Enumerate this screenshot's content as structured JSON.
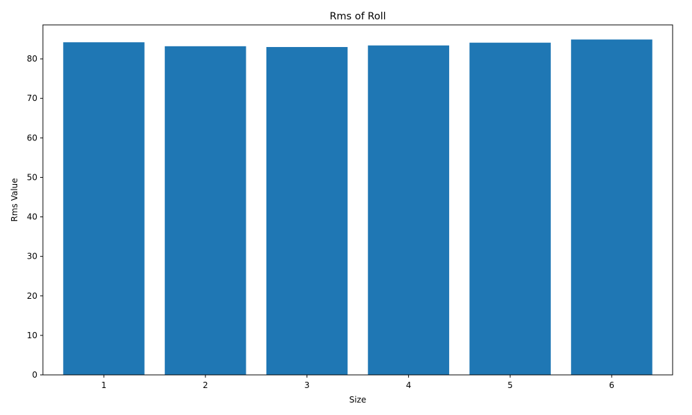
{
  "chart_data": {
    "type": "bar",
    "title": "Rms of Roll",
    "xlabel": "Size",
    "ylabel": "Rms Value",
    "categories": [
      "1",
      "2",
      "3",
      "4",
      "5",
      "6"
    ],
    "values": [
      84.2,
      83.2,
      83.0,
      83.4,
      84.1,
      84.9
    ],
    "ylim": [
      0,
      88.6
    ],
    "yticks": [
      0,
      10,
      20,
      30,
      40,
      50,
      60,
      70,
      80
    ],
    "bar_color": "#1f77b4",
    "grid": false,
    "legend": "none"
  }
}
